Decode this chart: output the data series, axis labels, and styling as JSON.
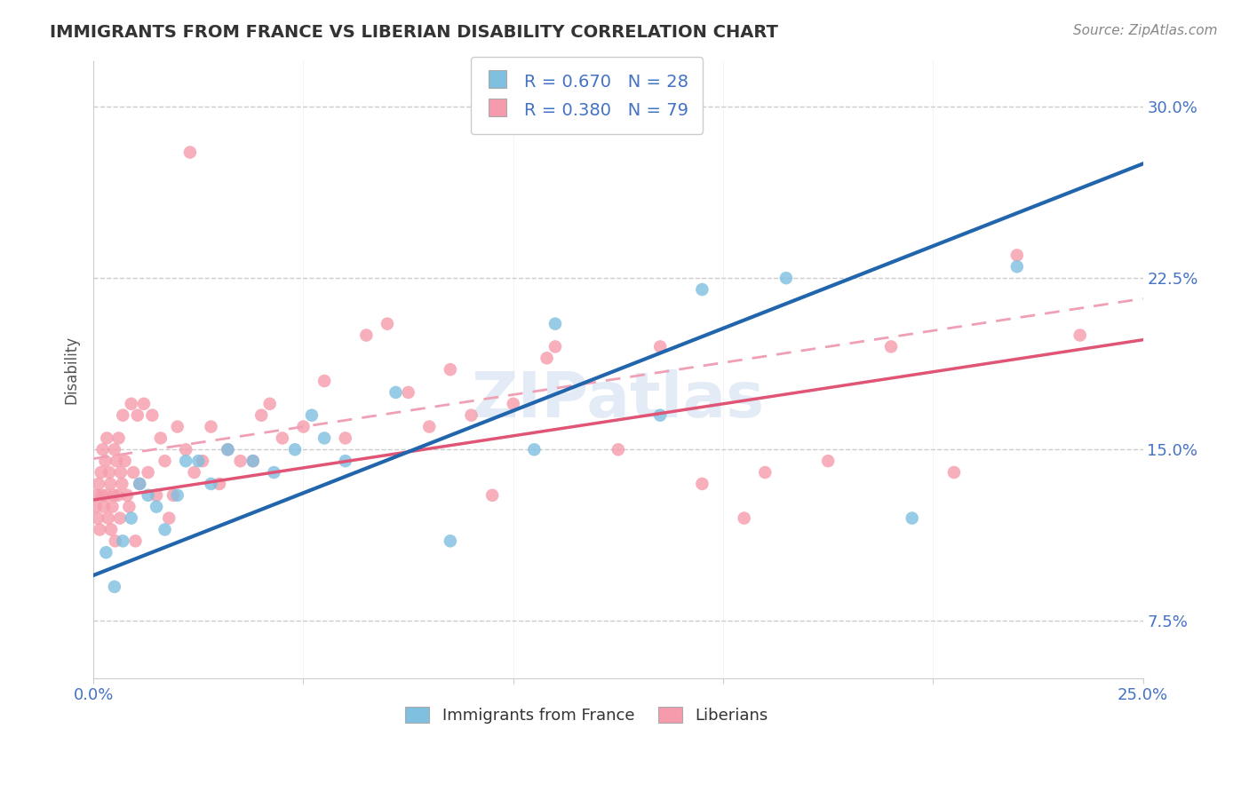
{
  "title": "IMMIGRANTS FROM FRANCE VS LIBERIAN DISABILITY CORRELATION CHART",
  "source": "Source: ZipAtlas.com",
  "ylabel_label": "Disability",
  "xlim": [
    0.0,
    25.0
  ],
  "ylim": [
    5.0,
    32.0
  ],
  "yticks": [
    7.5,
    15.0,
    22.5,
    30.0
  ],
  "xtick_show": [
    0.0,
    25.0
  ],
  "blue_R": 0.67,
  "blue_N": 28,
  "pink_R": 0.38,
  "pink_N": 79,
  "blue_color": "#7fbfdf",
  "pink_color": "#f59bac",
  "blue_line_color": "#2166ac",
  "pink_line_color": "#e05575",
  "pink_dashed_color": "#f0a0b5",
  "legend_label_blue": "Immigrants from France",
  "legend_label_pink": "Liberians",
  "background_color": "#ffffff",
  "title_color": "#333333",
  "axis_label_color": "#4472c4",
  "blue_intercept": 9.5,
  "blue_slope": 0.72,
  "pink_intercept": 12.8,
  "pink_slope": 0.28,
  "blue_scatter_x": [
    0.3,
    0.5,
    0.7,
    0.9,
    1.1,
    1.3,
    1.5,
    1.7,
    2.0,
    2.2,
    2.5,
    2.8,
    3.2,
    3.8,
    4.3,
    5.2,
    6.0,
    7.2,
    8.5,
    11.0,
    13.5,
    16.5,
    19.5,
    22.0,
    5.5,
    10.5,
    14.5,
    4.8
  ],
  "blue_scatter_y": [
    10.5,
    9.0,
    11.0,
    12.0,
    13.5,
    13.0,
    12.5,
    11.5,
    13.0,
    14.5,
    14.5,
    13.5,
    15.0,
    14.5,
    14.0,
    16.5,
    14.5,
    17.5,
    11.0,
    20.5,
    16.5,
    22.5,
    12.0,
    23.0,
    15.5,
    15.0,
    22.0,
    15.0
  ],
  "pink_scatter_x": [
    0.05,
    0.08,
    0.1,
    0.12,
    0.15,
    0.18,
    0.2,
    0.22,
    0.25,
    0.28,
    0.3,
    0.32,
    0.35,
    0.38,
    0.4,
    0.42,
    0.45,
    0.48,
    0.5,
    0.52,
    0.55,
    0.58,
    0.6,
    0.63,
    0.65,
    0.68,
    0.7,
    0.75,
    0.8,
    0.85,
    0.9,
    0.95,
    1.0,
    1.05,
    1.1,
    1.2,
    1.3,
    1.4,
    1.5,
    1.6,
    1.7,
    1.8,
    1.9,
    2.0,
    2.2,
    2.4,
    2.6,
    2.8,
    3.0,
    3.2,
    3.5,
    3.8,
    4.0,
    4.5,
    5.0,
    5.5,
    6.0,
    6.5,
    7.0,
    7.5,
    8.0,
    8.5,
    9.0,
    9.5,
    10.0,
    11.0,
    12.5,
    13.5,
    14.5,
    16.0,
    17.5,
    19.0,
    20.5,
    22.0,
    23.5,
    4.2,
    10.8,
    15.5,
    2.3
  ],
  "pink_scatter_y": [
    12.5,
    13.0,
    12.0,
    13.5,
    11.5,
    14.0,
    13.0,
    15.0,
    12.5,
    14.5,
    13.0,
    15.5,
    12.0,
    14.0,
    13.5,
    11.5,
    12.5,
    13.0,
    15.0,
    11.0,
    14.5,
    13.0,
    15.5,
    12.0,
    14.0,
    13.5,
    16.5,
    14.5,
    13.0,
    12.5,
    17.0,
    14.0,
    11.0,
    16.5,
    13.5,
    17.0,
    14.0,
    16.5,
    13.0,
    15.5,
    14.5,
    12.0,
    13.0,
    16.0,
    15.0,
    14.0,
    14.5,
    16.0,
    13.5,
    15.0,
    14.5,
    14.5,
    16.5,
    15.5,
    16.0,
    18.0,
    15.5,
    20.0,
    20.5,
    17.5,
    16.0,
    18.5,
    16.5,
    13.0,
    17.0,
    19.5,
    15.0,
    19.5,
    13.5,
    14.0,
    14.5,
    19.5,
    14.0,
    23.5,
    20.0,
    17.0,
    19.0,
    12.0,
    28.0
  ]
}
